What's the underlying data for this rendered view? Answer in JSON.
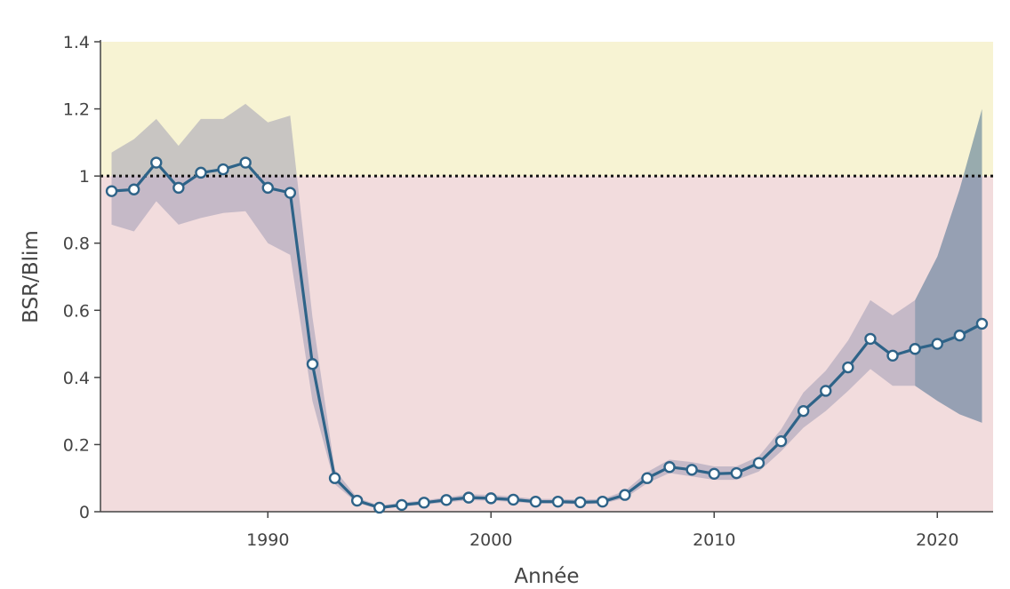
{
  "chart_data": {
    "type": "line",
    "xlabel": "Année",
    "ylabel": "BSR/Blim",
    "xlim": [
      1982.5,
      2022.5
    ],
    "ylim": [
      0,
      1.4
    ],
    "xticks": [
      1990,
      2000,
      2010,
      2020
    ],
    "yticks": [
      {
        "value": 0,
        "label": "0"
      },
      {
        "value": 0.2,
        "label": "0.2"
      },
      {
        "value": 0.4,
        "label": "0.4"
      },
      {
        "value": 0.6,
        "label": "0.6"
      },
      {
        "value": 0.8,
        "label": "0.8"
      },
      {
        "value": 1.0,
        "label": "1"
      },
      {
        "value": 1.2,
        "label": "1.2"
      },
      {
        "value": 1.4,
        "label": "1.4"
      }
    ],
    "reference_line": {
      "y": 1.0,
      "style": "dotted"
    },
    "zones": [
      {
        "from": 0,
        "to": 1.0,
        "color": "#f2dcdd"
      },
      {
        "from": 1.0,
        "to": 1.4,
        "color": "#f7f3d3"
      }
    ],
    "series": [
      {
        "x": [
          1983,
          1984,
          1985,
          1986,
          1987,
          1988,
          1989,
          1990,
          1991,
          1992,
          1993,
          1994,
          1995,
          1996,
          1997,
          1998,
          1999,
          2000,
          2001,
          2002,
          2003,
          2004,
          2005,
          2006,
          2007,
          2008,
          2009,
          2010,
          2011,
          2012,
          2013,
          2014,
          2015,
          2016,
          2017,
          2018,
          2019,
          2020,
          2021,
          2022
        ],
        "y": [
          0.955,
          0.96,
          1.04,
          0.965,
          1.01,
          1.02,
          1.04,
          0.965,
          0.95,
          0.44,
          0.1,
          0.033,
          0.012,
          0.02,
          0.027,
          0.035,
          0.042,
          0.04,
          0.036,
          0.03,
          0.03,
          0.028,
          0.03,
          0.05,
          0.1,
          0.133,
          0.125,
          0.113,
          0.115,
          0.145,
          0.21,
          0.3,
          0.36,
          0.43,
          0.515,
          0.465,
          0.485,
          0.5,
          0.525,
          0.56
        ],
        "color": "#2e6388"
      }
    ],
    "confidence_band": {
      "x": [
        1983,
        1984,
        1985,
        1986,
        1987,
        1988,
        1989,
        1990,
        1991,
        1992,
        1993,
        1994,
        1995,
        1996,
        1997,
        1998,
        1999,
        2000,
        2001,
        2002,
        2003,
        2004,
        2005,
        2006,
        2007,
        2008,
        2009,
        2010,
        2011,
        2012,
        2013,
        2014,
        2015,
        2016,
        2017,
        2018,
        2019
      ],
      "lower": [
        0.855,
        0.835,
        0.925,
        0.855,
        0.875,
        0.89,
        0.895,
        0.8,
        0.765,
        0.33,
        0.082,
        0.026,
        0.008,
        0.015,
        0.021,
        0.028,
        0.034,
        0.033,
        0.029,
        0.024,
        0.024,
        0.022,
        0.024,
        0.04,
        0.085,
        0.115,
        0.105,
        0.095,
        0.095,
        0.12,
        0.18,
        0.25,
        0.3,
        0.36,
        0.425,
        0.375,
        0.375
      ],
      "upper": [
        1.07,
        1.11,
        1.17,
        1.09,
        1.17,
        1.17,
        1.215,
        1.16,
        1.18,
        0.58,
        0.125,
        0.042,
        0.018,
        0.027,
        0.034,
        0.043,
        0.052,
        0.05,
        0.045,
        0.038,
        0.038,
        0.036,
        0.038,
        0.062,
        0.118,
        0.155,
        0.148,
        0.135,
        0.135,
        0.165,
        0.245,
        0.355,
        0.42,
        0.51,
        0.63,
        0.585,
        0.63
      ],
      "color": "#8e8eac"
    },
    "forecast_band": {
      "x": [
        2019,
        2020,
        2021,
        2022
      ],
      "lower": [
        0.375,
        0.33,
        0.29,
        0.265
      ],
      "upper": [
        0.63,
        0.76,
        0.96,
        1.2
      ],
      "color": "#4a6f8f"
    }
  }
}
